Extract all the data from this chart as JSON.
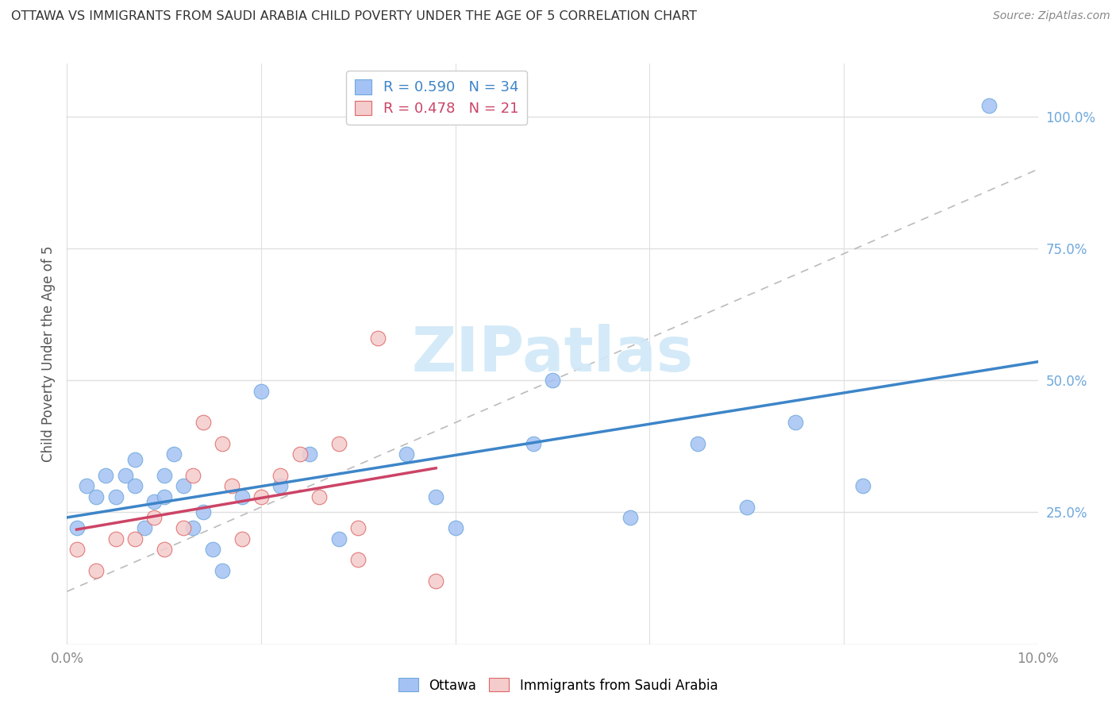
{
  "title": "OTTAWA VS IMMIGRANTS FROM SAUDI ARABIA CHILD POVERTY UNDER THE AGE OF 5 CORRELATION CHART",
  "source": "Source: ZipAtlas.com",
  "ylabel": "Child Poverty Under the Age of 5",
  "xlim": [
    0.0,
    0.1
  ],
  "ylim": [
    0.0,
    1.1
  ],
  "xticks": [
    0.0,
    0.02,
    0.04,
    0.06,
    0.08,
    0.1
  ],
  "xtick_labels": [
    "0.0%",
    "",
    "",
    "",
    "",
    "10.0%"
  ],
  "ytick_positions_right": [
    0.25,
    0.5,
    0.75,
    1.0
  ],
  "ytick_labels_right": [
    "25.0%",
    "50.0%",
    "75.0%",
    "100.0%"
  ],
  "ottawa_color": "#a4c2f4",
  "ottawa_edge_color": "#6fa8dc",
  "saudi_color": "#f4cccc",
  "saudi_edge_color": "#e06666",
  "ottawa_R": 0.59,
  "ottawa_N": 34,
  "saudi_R": 0.478,
  "saudi_N": 21,
  "blue_line_color": "#3d85c8",
  "pink_line_color": "#cc4466",
  "gray_line_color": "#bbbbbb",
  "right_axis_color": "#6fa8dc",
  "bg_color": "#ffffff",
  "grid_color": "#e0e0e0",
  "title_color": "#333333",
  "watermark_color": "#d0e8f8",
  "ottawa_x": [
    0.001,
    0.002,
    0.003,
    0.004,
    0.005,
    0.006,
    0.007,
    0.007,
    0.008,
    0.009,
    0.01,
    0.01,
    0.011,
    0.012,
    0.013,
    0.014,
    0.015,
    0.016,
    0.018,
    0.02,
    0.022,
    0.025,
    0.028,
    0.035,
    0.038,
    0.04,
    0.048,
    0.05,
    0.058,
    0.065,
    0.07,
    0.075,
    0.082,
    0.095
  ],
  "ottawa_y": [
    0.22,
    0.3,
    0.28,
    0.32,
    0.28,
    0.32,
    0.3,
    0.35,
    0.22,
    0.27,
    0.28,
    0.32,
    0.36,
    0.3,
    0.22,
    0.25,
    0.18,
    0.14,
    0.28,
    0.48,
    0.3,
    0.36,
    0.2,
    0.36,
    0.28,
    0.22,
    0.38,
    0.5,
    0.24,
    0.38,
    0.26,
    0.42,
    0.3,
    1.02
  ],
  "saudi_x": [
    0.001,
    0.003,
    0.005,
    0.007,
    0.009,
    0.01,
    0.012,
    0.013,
    0.014,
    0.016,
    0.017,
    0.018,
    0.02,
    0.022,
    0.024,
    0.026,
    0.028,
    0.03,
    0.03,
    0.032,
    0.038
  ],
  "saudi_y": [
    0.18,
    0.14,
    0.2,
    0.2,
    0.24,
    0.18,
    0.22,
    0.32,
    0.42,
    0.38,
    0.3,
    0.2,
    0.28,
    0.32,
    0.36,
    0.28,
    0.38,
    0.22,
    0.16,
    0.58,
    0.12
  ],
  "gray_line_x": [
    0.0,
    0.1
  ],
  "gray_line_y": [
    0.1,
    0.9
  ]
}
